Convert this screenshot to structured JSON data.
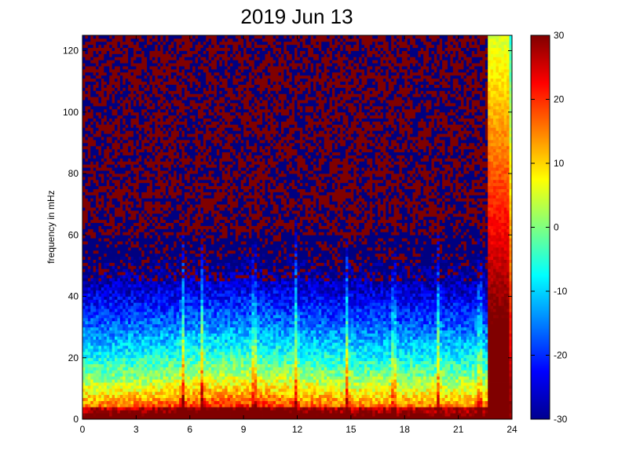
{
  "chart_data": {
    "type": "heatmap",
    "title": "2019 Jun 13",
    "xlabel": "",
    "ylabel": "frequency in mHz",
    "xlim": [
      0,
      24
    ],
    "ylim": [
      0,
      125
    ],
    "x_ticks": [
      0,
      3,
      6,
      9,
      12,
      15,
      18,
      21,
      24
    ],
    "y_ticks": [
      0,
      20,
      40,
      60,
      80,
      100,
      120
    ],
    "colorbar": {
      "colormap": "jet",
      "range": [
        -30,
        30
      ],
      "ticks": [
        -30,
        -20,
        -10,
        0,
        10,
        20,
        30
      ]
    },
    "features": {
      "low_frequency_band_high_power_mHz": [
        0,
        25
      ],
      "broadband_activity_hours": [
        3.5,
        15
      ],
      "vertical_streak_hours": [
        5.6,
        6.7,
        9.6,
        11.9,
        14.8,
        17.4,
        19.9,
        22.2
      ],
      "high_power_onset_hour": 22.7
    }
  }
}
